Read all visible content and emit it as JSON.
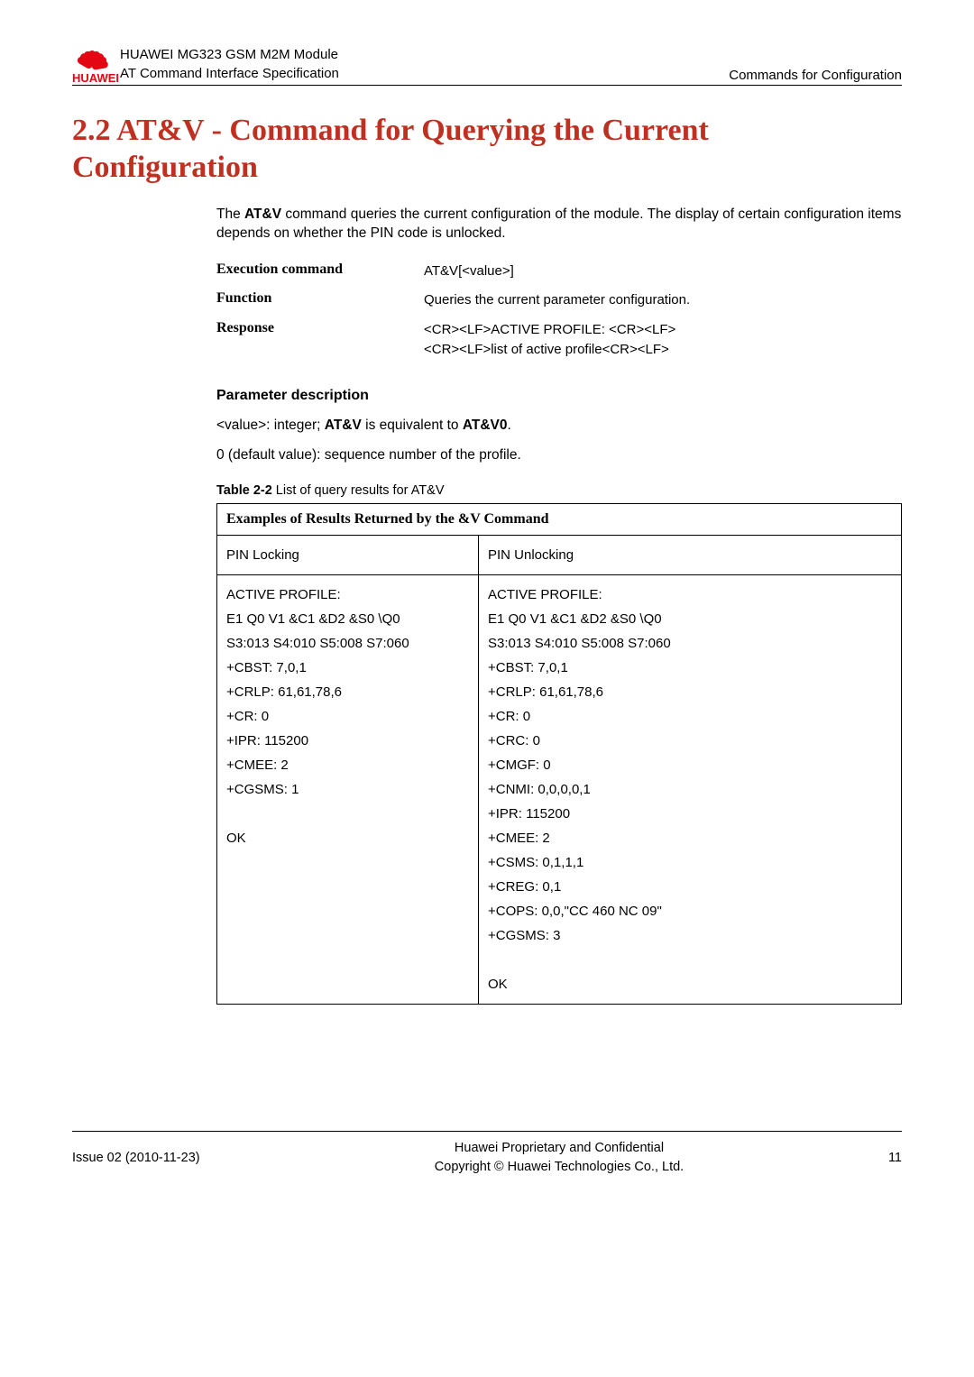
{
  "header": {
    "product": "HUAWEI MG323 GSM M2M Module",
    "spec": "AT Command Interface Specification",
    "category": "Commands for Configuration",
    "brand": "HUAWEI"
  },
  "section": {
    "title": "2.2 AT&V - Command for Querying the Current Configuration",
    "intro": "The AT&V command queries the current configuration of the module. The display of certain configuration items depends on whether the PIN code is unlocked."
  },
  "defs": {
    "exec_label": "Execution command",
    "exec_value": "AT&V[<value>]",
    "func_label": "Function",
    "func_value": "Queries the current parameter configuration.",
    "resp_label": "Response",
    "resp_line1": "<CR><LF>ACTIVE PROFILE: <CR><LF>",
    "resp_line2": "<CR><LF>list of active profile<CR><LF>"
  },
  "params": {
    "heading": "Parameter description",
    "p1_pre": "<value>: integer; ",
    "p1_b1": "AT&V",
    "p1_mid": " is equivalent to ",
    "p1_b2": "AT&V0",
    "p1_post": ".",
    "p2": "0 (default value): sequence number of the profile."
  },
  "table": {
    "caption_bold": "Table 2-2",
    "caption_rest": " List of query results for AT&V",
    "header": "Examples of Results Returned by the &V Command",
    "row_h_left": "PIN Locking",
    "row_h_right": "PIN Unlocking",
    "left_lines": [
      "ACTIVE PROFILE:",
      "E1 Q0 V1 &C1 &D2 &S0 \\Q0",
      "S3:013 S4:010 S5:008 S7:060",
      "+CBST: 7,0,1",
      "+CRLP: 61,61,78,6",
      "+CR: 0",
      "+IPR: 115200",
      "+CMEE: 2",
      "+CGSMS: 1",
      "",
      "OK"
    ],
    "right_lines": [
      "ACTIVE PROFILE:",
      "E1 Q0 V1 &C1 &D2 &S0 \\Q0",
      "S3:013 S4:010 S5:008 S7:060",
      "+CBST: 7,0,1",
      "+CRLP: 61,61,78,6",
      "+CR: 0",
      "+CRC: 0",
      "+CMGF: 0",
      "+CNMI: 0,0,0,0,1",
      "+IPR: 115200",
      "+CMEE: 2",
      "+CSMS: 0,1,1,1",
      "+CREG: 0,1",
      "+COPS: 0,0,\"CC 460 NC 09\"",
      "+CGSMS: 3",
      "",
      "OK"
    ]
  },
  "footer": {
    "issue": "Issue 02 (2010-11-23)",
    "line1": "Huawei Proprietary and Confidential",
    "line2": "Copyright © Huawei Technologies Co., Ltd.",
    "page": "11"
  },
  "colors": {
    "brand_red": "#e30613",
    "title_red": "#c03020"
  }
}
